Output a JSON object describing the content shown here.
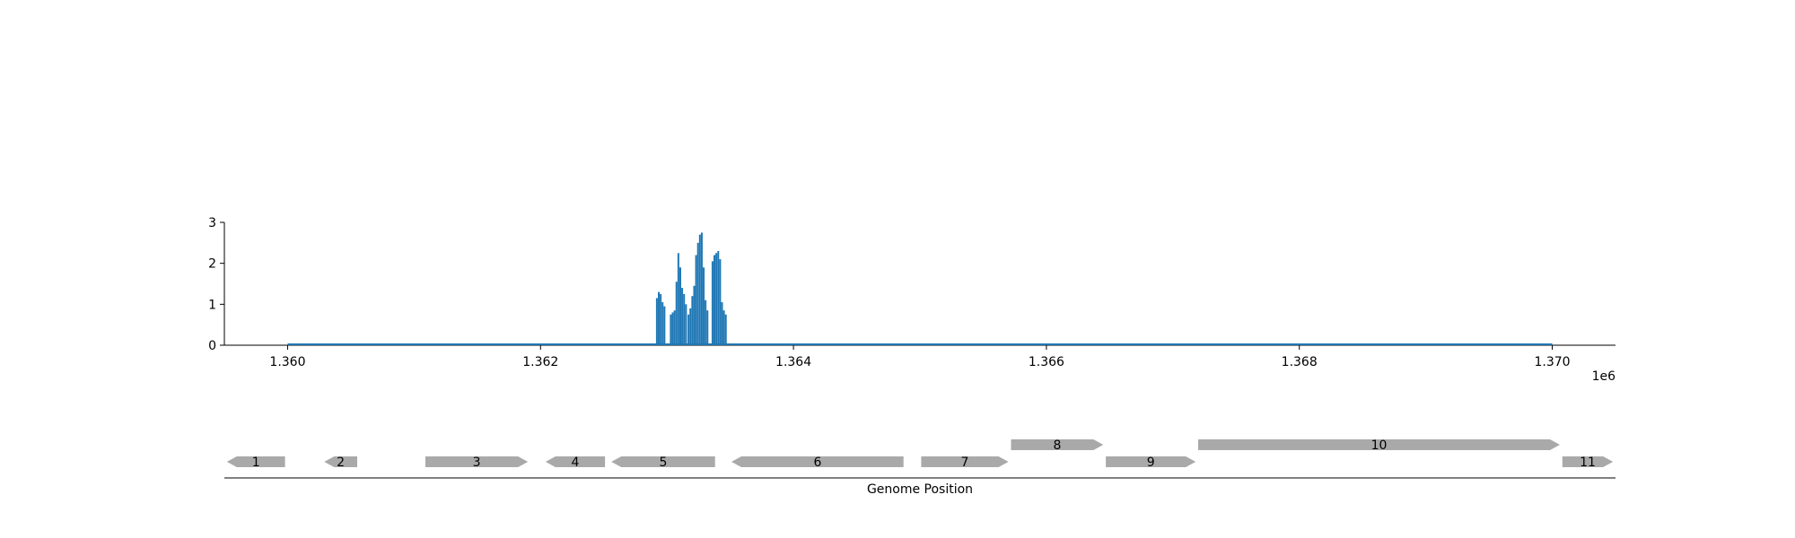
{
  "chart_data": [
    {
      "type": "bar",
      "subtype": "coverage",
      "title": "",
      "xlabel": "",
      "ylabel": "",
      "x_offset_label": "1e6",
      "xlim": [
        1359500,
        1370500
      ],
      "ylim": [
        0,
        3
      ],
      "x_ticks": [
        1360000,
        1362000,
        1364000,
        1366000,
        1368000,
        1370000
      ],
      "x_tick_labels": [
        "1.360",
        "1.362",
        "1.364",
        "1.366",
        "1.368",
        "1.370"
      ],
      "y_ticks": [
        0,
        1,
        2,
        3
      ],
      "y_tick_labels": [
        "0",
        "1",
        "2",
        "3"
      ],
      "baseline_range": [
        1360000,
        1370000
      ],
      "bar_color": "#1f77b4",
      "bar_width": 5,
      "x": [
        1362920,
        1362935,
        1362950,
        1362965,
        1362980,
        1363030,
        1363045,
        1363060,
        1363075,
        1363090,
        1363105,
        1363120,
        1363135,
        1363150,
        1363170,
        1363185,
        1363200,
        1363215,
        1363230,
        1363245,
        1363260,
        1363275,
        1363290,
        1363305,
        1363320,
        1363360,
        1363375,
        1363390,
        1363405,
        1363420,
        1363435,
        1363450,
        1363465
      ],
      "values": [
        1.15,
        1.3,
        1.25,
        1.05,
        0.95,
        0.75,
        0.8,
        0.85,
        1.55,
        2.25,
        1.9,
        1.4,
        1.25,
        1.0,
        0.75,
        0.9,
        1.2,
        1.45,
        2.2,
        2.5,
        2.7,
        2.75,
        1.9,
        1.1,
        0.85,
        2.05,
        2.2,
        2.25,
        2.3,
        2.1,
        1.05,
        0.85,
        0.75
      ]
    },
    {
      "type": "gene_track",
      "xlabel": "Genome Position",
      "xlim": [
        1359500,
        1370500
      ],
      "gene_color": "#a9a9a9",
      "genes": [
        {
          "label": "1",
          "start": 1359520,
          "end": 1359980,
          "strand": "-",
          "row": 0
        },
        {
          "label": "2",
          "start": 1360290,
          "end": 1360550,
          "strand": "-",
          "row": 0
        },
        {
          "label": "3",
          "start": 1361090,
          "end": 1361900,
          "strand": "+",
          "row": 0
        },
        {
          "label": "4",
          "start": 1362040,
          "end": 1362510,
          "strand": "-",
          "row": 0
        },
        {
          "label": "5",
          "start": 1362560,
          "end": 1363380,
          "strand": "-",
          "row": 0
        },
        {
          "label": "6",
          "start": 1363510,
          "end": 1364870,
          "strand": "-",
          "row": 0
        },
        {
          "label": "7",
          "start": 1365010,
          "end": 1365700,
          "strand": "+",
          "row": 0
        },
        {
          "label": "8",
          "start": 1365720,
          "end": 1366450,
          "strand": "+",
          "row": 1
        },
        {
          "label": "9",
          "start": 1366470,
          "end": 1367180,
          "strand": "+",
          "row": 0
        },
        {
          "label": "10",
          "start": 1367200,
          "end": 1370060,
          "strand": "+",
          "row": 1
        },
        {
          "label": "11",
          "start": 1370080,
          "end": 1370480,
          "strand": "+",
          "row": 0
        }
      ]
    }
  ]
}
